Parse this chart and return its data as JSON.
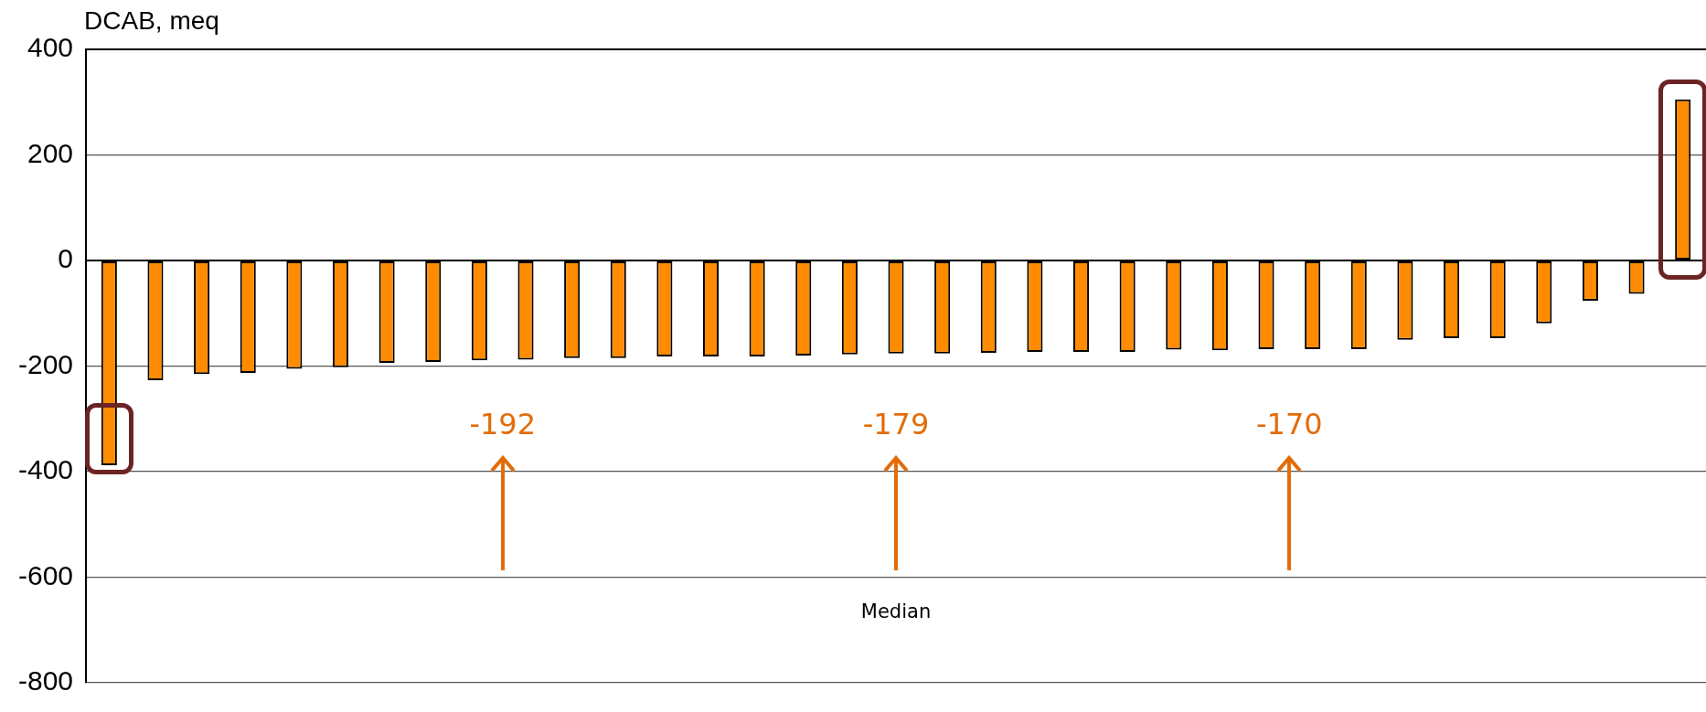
{
  "chart_data": {
    "type": "bar",
    "ylabel": "DCAB, meq",
    "categories": [
      null,
      null,
      null,
      null,
      null,
      null,
      null,
      null,
      null,
      null,
      null,
      null,
      null,
      null,
      null,
      null,
      null,
      null,
      null,
      null,
      null,
      null,
      null,
      null,
      null,
      null,
      null,
      null,
      null,
      null,
      null,
      null,
      null,
      null,
      null
    ],
    "values": [
      -388,
      -227,
      -215,
      -213,
      -205,
      -202,
      -194,
      -192,
      -189,
      -188,
      -185,
      -185,
      -182,
      -182,
      -182,
      -180,
      -178,
      -176,
      -176,
      -175,
      -173,
      -173,
      -173,
      -169,
      -170,
      -168,
      -168,
      -168,
      -150,
      -147,
      -147,
      -119,
      -76,
      -63,
      305
    ],
    "color": "#ff8c00",
    "ylim": [
      -800,
      400
    ],
    "yticks": [
      -800,
      -600,
      -400,
      -200,
      0,
      200,
      400
    ],
    "grid": "y",
    "tick_labels": "y",
    "annotations": [
      "-192",
      "-179",
      "-170",
      "Median"
    ]
  }
}
